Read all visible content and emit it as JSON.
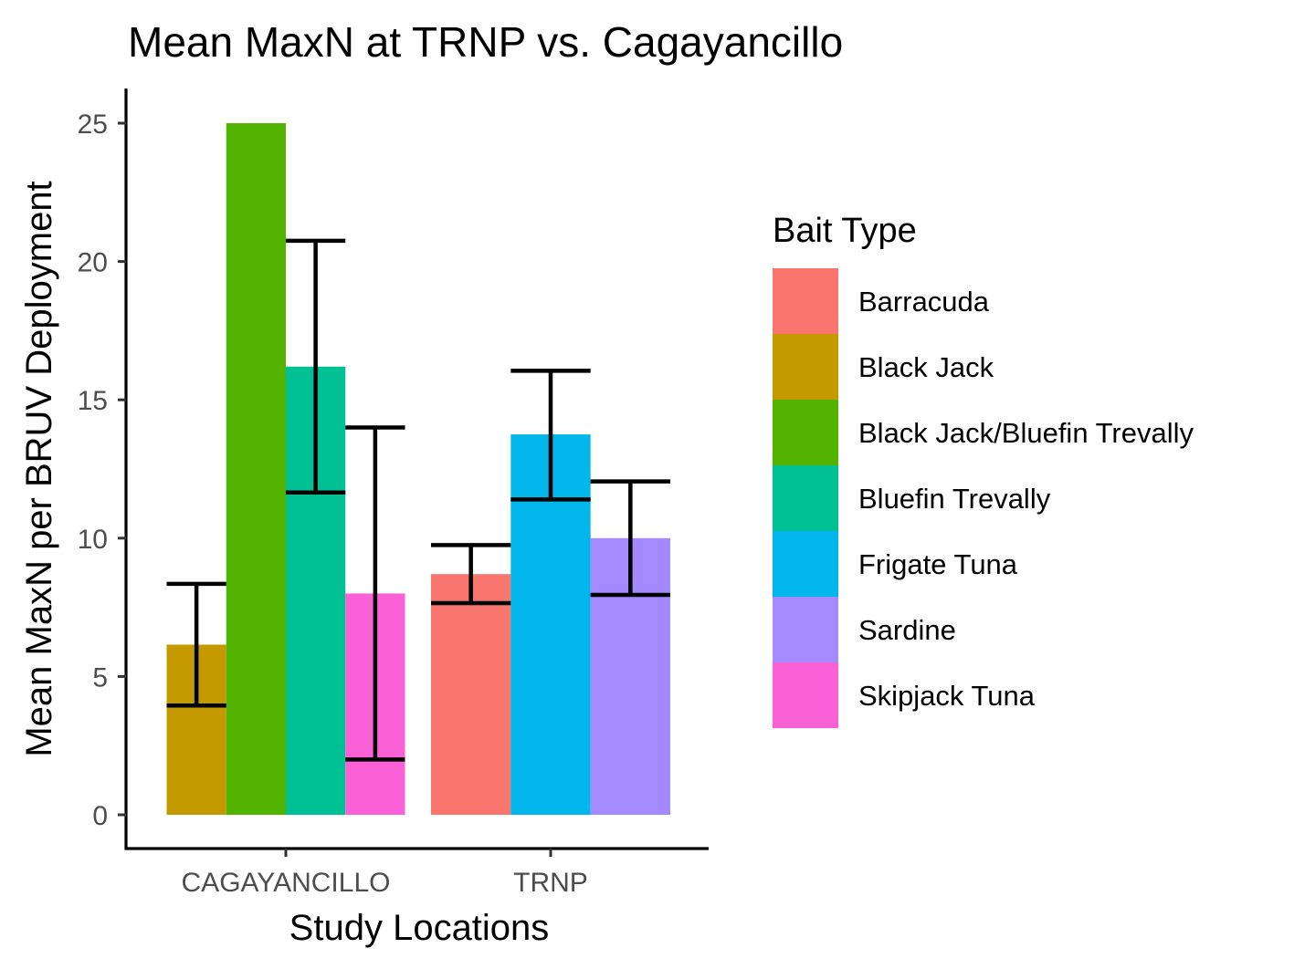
{
  "chart_data": {
    "type": "bar",
    "title": "Mean MaxN at TRNP vs. Cagayancillo",
    "xlabel": "Study Locations",
    "ylabel": "Mean MaxN per BRUV Deployment",
    "ylim": [
      -1.2,
      25.5
    ],
    "yticks": [
      0,
      5,
      10,
      15,
      20,
      25
    ],
    "categories": [
      "CAGAYANCILLO",
      "TRNP"
    ],
    "grid": false,
    "legend": {
      "title": "Bait Type",
      "position": "right",
      "entries": [
        {
          "name": "Barracuda",
          "color": "#F8766D"
        },
        {
          "name": "Black Jack",
          "color": "#C49A00"
        },
        {
          "name": "Black Jack/Bluefin Trevally",
          "color": "#53B400"
        },
        {
          "name": "Bluefin Trevally",
          "color": "#00C094"
        },
        {
          "name": "Frigate Tuna",
          "color": "#00B6EB"
        },
        {
          "name": "Sardine",
          "color": "#A58AFF"
        },
        {
          "name": "Skipjack Tuna",
          "color": "#FB61D7"
        }
      ]
    },
    "bars": [
      {
        "category": "CAGAYANCILLO",
        "series": "Black Jack",
        "value": 6.15,
        "err_low": 3.95,
        "err_high": 8.35
      },
      {
        "category": "CAGAYANCILLO",
        "series": "Black Jack/Bluefin Trevally",
        "value": 25.0,
        "err_low": null,
        "err_high": null
      },
      {
        "category": "CAGAYANCILLO",
        "series": "Bluefin Trevally",
        "value": 16.2,
        "err_low": 11.65,
        "err_high": 20.75
      },
      {
        "category": "CAGAYANCILLO",
        "series": "Skipjack Tuna",
        "value": 8.0,
        "err_low": 2.0,
        "err_high": 14.0
      },
      {
        "category": "TRNP",
        "series": "Barracuda",
        "value": 8.7,
        "err_low": 7.65,
        "err_high": 9.75
      },
      {
        "category": "TRNP",
        "series": "Frigate Tuna",
        "value": 13.75,
        "err_low": 11.4,
        "err_high": 16.05
      },
      {
        "category": "TRNP",
        "series": "Sardine",
        "value": 10.0,
        "err_low": 7.95,
        "err_high": 12.05
      }
    ]
  }
}
